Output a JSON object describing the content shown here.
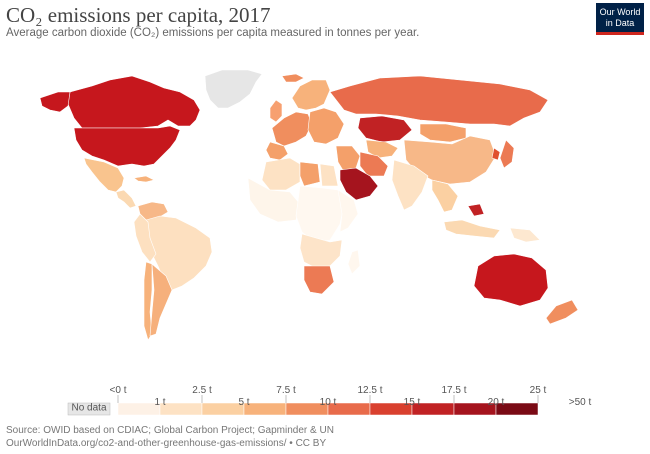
{
  "title": "CO₂ emissions per capita, 2017",
  "subtitle": "Average carbon dioxide (CO₂) emissions per capita measured in tonnes per year.",
  "logo": {
    "line1": "Our World",
    "line2": "in Data"
  },
  "legend": {
    "no_data_label": "No data",
    "bins": [
      {
        "color": "#fdf1e6"
      },
      {
        "color": "#fde2c4"
      },
      {
        "color": "#fbd0a2"
      },
      {
        "color": "#f7b27b"
      },
      {
        "color": "#f08e5e"
      },
      {
        "color": "#e86b4b"
      },
      {
        "color": "#d9402f"
      },
      {
        "color": "#c12224"
      },
      {
        "color": "#a5141e"
      },
      {
        "color": "#7a0a15"
      }
    ],
    "ticks_upper": [
      {
        "label": "<0 t",
        "index": 0
      },
      {
        "label": "2.5 t",
        "index": 2
      },
      {
        "label": "7.5 t",
        "index": 4
      },
      {
        "label": "12.5 t",
        "index": 6
      },
      {
        "label": "17.5 t",
        "index": 8
      },
      {
        "label": "25 t",
        "index": 10
      }
    ],
    "ticks_lower": [
      {
        "label": "1 t",
        "index": 1
      },
      {
        "label": "5 t",
        "index": 3
      },
      {
        "label": "10 t",
        "index": 5
      },
      {
        "label": "15 t",
        "index": 7
      },
      {
        "label": "20 t",
        "index": 9
      },
      {
        "label": ">50 t",
        "index": 11
      }
    ]
  },
  "colors": {
    "no_data": "#e6e6e6",
    "country_border": "#ffffff",
    "na": "#c6171d",
    "canada": "#c6171d",
    "mexico": "#f9c48e",
    "greenland": "#e6e6e6",
    "central_america": "#fbd9b2",
    "caribbean": "#f7b27b",
    "south_america": "#fde0c0",
    "argentina": "#f6b07c",
    "chile": "#f7b27b",
    "venezuela": "#f7b888",
    "north_africa": "#fde2c4",
    "libya": "#f4a06a",
    "west_africa": "#fef5ea",
    "central_africa": "#fff8f0",
    "east_africa": "#fff7ee",
    "southern_africa": "#fde4c9",
    "south_africa": "#ec7a54",
    "europe_west": "#f08e5e",
    "europe_east": "#f4a06a",
    "scandinavia": "#f7b27b",
    "russia": "#e86b4b",
    "kazakhstan": "#c12224",
    "middle_east": "#f4a06a",
    "saudi": "#a5141e",
    "iran": "#ec7a54",
    "central_asia": "#f7b27b",
    "china": "#f7b888",
    "mongolia": "#f4a06a",
    "india": "#fde2c4",
    "se_asia": "#fbd0a2",
    "japan": "#ec7a54",
    "korea": "#e0502f",
    "indonesia": "#fbd9b2",
    "brunei": "#c12224",
    "png": "#fde8d0",
    "australia": "#c6171d",
    "nz": "#f08e5e",
    "uk": "#f7a070",
    "iceland": "#f08e5e"
  },
  "source": {
    "line1": "Source: OWID based on CDIAC; Global Carbon Project; Gapminder & UN",
    "line2": "OurWorldInData.org/co2-and-other-greenhouse-gas-emissions/ • CC BY"
  }
}
